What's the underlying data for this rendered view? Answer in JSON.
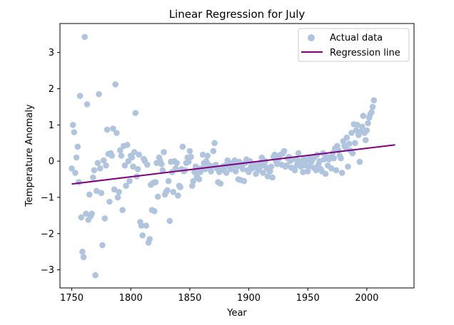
{
  "chart_data": {
    "type": "scatter",
    "title": "Linear Regression for July",
    "xlabel": "Year",
    "ylabel": "Temperature Anomaly",
    "xlim": [
      1740,
      2040
    ],
    "ylim": [
      -3.5,
      3.8
    ],
    "xticks": [
      1750,
      1800,
      1850,
      1900,
      1950,
      2000
    ],
    "yticks": [
      -3,
      -2,
      -1,
      0,
      1,
      2,
      3
    ],
    "grid": false,
    "legend_position": "top-right",
    "colors": {
      "scatter": "#b0c4de",
      "line": "#800080"
    },
    "series": [
      {
        "name": "Actual data",
        "type": "scatter",
        "points": [
          [
            1750,
            -0.2
          ],
          [
            1751,
            1.0
          ],
          [
            1752,
            0.8
          ],
          [
            1753,
            -0.32
          ],
          [
            1754,
            0.1
          ],
          [
            1755,
            0.4
          ],
          [
            1756,
            -0.58
          ],
          [
            1757,
            1.8
          ],
          [
            1758,
            -1.55
          ],
          [
            1759,
            -2.5
          ],
          [
            1760,
            -2.65
          ],
          [
            1761,
            3.43
          ],
          [
            1762,
            -1.45
          ],
          [
            1763,
            1.57
          ],
          [
            1764,
            -1.62
          ],
          [
            1765,
            -0.92
          ],
          [
            1766,
            -1.52
          ],
          [
            1767,
            -1.45
          ],
          [
            1768,
            -0.45
          ],
          [
            1769,
            -0.25
          ],
          [
            1770,
            -3.15
          ],
          [
            1771,
            -0.82
          ],
          [
            1772,
            -0.05
          ],
          [
            1773,
            1.85
          ],
          [
            1774,
            -0.2
          ],
          [
            1775,
            -0.88
          ],
          [
            1776,
            -2.32
          ],
          [
            1777,
            0.02
          ],
          [
            1778,
            -1.58
          ],
          [
            1779,
            -0.12
          ],
          [
            1780,
            0.87
          ],
          [
            1781,
            0.2
          ],
          [
            1782,
            -1.12
          ],
          [
            1783,
            0.22
          ],
          [
            1784,
            0.15
          ],
          [
            1785,
            0.9
          ],
          [
            1786,
            -0.78
          ],
          [
            1787,
            2.12
          ],
          [
            1788,
            0.78
          ],
          [
            1789,
            -1.0
          ],
          [
            1790,
            -0.85
          ],
          [
            1791,
            0.3
          ],
          [
            1792,
            0.15
          ],
          [
            1793,
            -1.35
          ],
          [
            1794,
            0.42
          ],
          [
            1795,
            -0.12
          ],
          [
            1796,
            -0.68
          ],
          [
            1797,
            0.45
          ],
          [
            1798,
            0.0
          ],
          [
            1799,
            -0.55
          ],
          [
            1800,
            0.15
          ],
          [
            1801,
            0.1
          ],
          [
            1802,
            -0.15
          ],
          [
            1803,
            0.25
          ],
          [
            1804,
            1.33
          ],
          [
            1805,
            -0.42
          ],
          [
            1806,
            -0.22
          ],
          [
            1807,
            0.18
          ],
          [
            1808,
            -1.68
          ],
          [
            1809,
            -1.78
          ],
          [
            1810,
            -2.05
          ],
          [
            1811,
            0.06
          ],
          [
            1812,
            0.0
          ],
          [
            1813,
            -1.78
          ],
          [
            1814,
            -0.1
          ],
          [
            1815,
            -2.25
          ],
          [
            1816,
            -2.15
          ],
          [
            1817,
            -0.65
          ],
          [
            1818,
            -1.35
          ],
          [
            1819,
            -0.6
          ],
          [
            1820,
            -1.38
          ],
          [
            1821,
            -0.58
          ],
          [
            1822,
            -0.05
          ],
          [
            1823,
            -0.98
          ],
          [
            1824,
            0.1
          ],
          [
            1825,
            0.0
          ],
          [
            1826,
            -0.08
          ],
          [
            1827,
            -0.25
          ],
          [
            1828,
            0.25
          ],
          [
            1829,
            -0.92
          ],
          [
            1830,
            -0.85
          ],
          [
            1831,
            -0.8
          ],
          [
            1832,
            -0.55
          ],
          [
            1833,
            -1.65
          ],
          [
            1834,
            -0.02
          ],
          [
            1835,
            -0.3
          ],
          [
            1836,
            -0.85
          ],
          [
            1837,
            0.0
          ],
          [
            1838,
            -0.2
          ],
          [
            1839,
            -0.05
          ],
          [
            1840,
            -0.95
          ],
          [
            1841,
            -0.68
          ],
          [
            1842,
            -0.72
          ],
          [
            1843,
            -0.22
          ],
          [
            1844,
            0.4
          ],
          [
            1845,
            -0.28
          ],
          [
            1846,
            -0.25
          ],
          [
            1847,
            -0.05
          ],
          [
            1848,
            0.1
          ],
          [
            1849,
            -0.02
          ],
          [
            1850,
            0.28
          ],
          [
            1851,
            0.12
          ],
          [
            1852,
            -0.68
          ],
          [
            1853,
            -0.55
          ],
          [
            1854,
            -0.3
          ],
          [
            1855,
            -0.15
          ],
          [
            1856,
            -0.42
          ],
          [
            1857,
            -0.2
          ],
          [
            1858,
            -0.5
          ],
          [
            1859,
            -0.3
          ],
          [
            1860,
            -0.2
          ],
          [
            1861,
            0.18
          ],
          [
            1862,
            -0.05
          ],
          [
            1863,
            -0.22
          ],
          [
            1864,
            0.0
          ],
          [
            1865,
            0.15
          ],
          [
            1866,
            -0.1
          ],
          [
            1867,
            -0.22
          ],
          [
            1868,
            -0.28
          ],
          [
            1869,
            -0.15
          ],
          [
            1870,
            0.28
          ],
          [
            1871,
            0.5
          ],
          [
            1872,
            -0.1
          ],
          [
            1873,
            -0.2
          ],
          [
            1874,
            -0.58
          ],
          [
            1875,
            -0.3
          ],
          [
            1876,
            -0.62
          ],
          [
            1877,
            -0.2
          ],
          [
            1878,
            -0.15
          ],
          [
            1879,
            -0.25
          ],
          [
            1880,
            -0.12
          ],
          [
            1881,
            -0.32
          ],
          [
            1882,
            0.02
          ],
          [
            1883,
            -0.08
          ],
          [
            1884,
            -0.18
          ],
          [
            1885,
            -0.22
          ],
          [
            1886,
            -0.05
          ],
          [
            1887,
            -0.1
          ],
          [
            1888,
            0.02
          ],
          [
            1889,
            -0.28
          ],
          [
            1890,
            -0.15
          ],
          [
            1891,
            -0.5
          ],
          [
            1892,
            -0.02
          ],
          [
            1893,
            -0.52
          ],
          [
            1894,
            -0.15
          ],
          [
            1895,
            -0.22
          ],
          [
            1896,
            -0.55
          ],
          [
            1897,
            -0.05
          ],
          [
            1898,
            0.05
          ],
          [
            1899,
            -0.25
          ],
          [
            1900,
            -0.3
          ],
          [
            1901,
            0.0
          ],
          [
            1902,
            -0.15
          ],
          [
            1903,
            -0.2
          ],
          [
            1904,
            -0.1
          ],
          [
            1905,
            -0.08
          ],
          [
            1906,
            -0.35
          ],
          [
            1907,
            -0.15
          ],
          [
            1908,
            -0.25
          ],
          [
            1909,
            -0.2
          ],
          [
            1910,
            -0.05
          ],
          [
            1911,
            0.1
          ],
          [
            1912,
            -0.32
          ],
          [
            1913,
            -0.12
          ],
          [
            1914,
            0.0
          ],
          [
            1915,
            -0.18
          ],
          [
            1916,
            -0.42
          ],
          [
            1917,
            -0.25
          ],
          [
            1918,
            -0.28
          ],
          [
            1919,
            -0.15
          ],
          [
            1920,
            -0.45
          ],
          [
            1921,
            0.12
          ],
          [
            1922,
            0.18
          ],
          [
            1923,
            0.0
          ],
          [
            1924,
            -0.08
          ],
          [
            1925,
            0.05
          ],
          [
            1926,
            0.15
          ],
          [
            1927,
            0.18
          ],
          [
            1928,
            -0.1
          ],
          [
            1929,
            0.22
          ],
          [
            1930,
            0.28
          ],
          [
            1931,
            -0.15
          ],
          [
            1932,
            -0.12
          ],
          [
            1933,
            0.08
          ],
          [
            1934,
            0.12
          ],
          [
            1935,
            0.0
          ],
          [
            1936,
            -0.18
          ],
          [
            1937,
            0.05
          ],
          [
            1938,
            -0.2
          ],
          [
            1939,
            -0.25
          ],
          [
            1940,
            0.05
          ],
          [
            1941,
            -0.1
          ],
          [
            1942,
            0.22
          ],
          [
            1943,
            0.0
          ],
          [
            1944,
            -0.15
          ],
          [
            1945,
            -0.05
          ],
          [
            1946,
            -0.3
          ],
          [
            1947,
            0.08
          ],
          [
            1948,
            -0.12
          ],
          [
            1949,
            0.02
          ],
          [
            1950,
            -0.28
          ],
          [
            1951,
            -0.15
          ],
          [
            1952,
            0.1
          ],
          [
            1953,
            -0.02
          ],
          [
            1954,
            0.05
          ],
          [
            1955,
            -0.18
          ],
          [
            1956,
            0.12
          ],
          [
            1957,
            -0.25
          ],
          [
            1958,
            0.18
          ],
          [
            1959,
            -0.1
          ],
          [
            1960,
            0.0
          ],
          [
            1961,
            -0.22
          ],
          [
            1962,
            -0.28
          ],
          [
            1963,
            0.22
          ],
          [
            1964,
            0.05
          ],
          [
            1965,
            -0.35
          ],
          [
            1966,
            0.12
          ],
          [
            1967,
            -0.12
          ],
          [
            1968,
            0.05
          ],
          [
            1969,
            0.1
          ],
          [
            1970,
            -0.2
          ],
          [
            1971,
            0.22
          ],
          [
            1972,
            0.08
          ],
          [
            1973,
            0.35
          ],
          [
            1974,
            -0.25
          ],
          [
            1975,
            0.42
          ],
          [
            1976,
            0.3
          ],
          [
            1977,
            0.15
          ],
          [
            1978,
            0.08
          ],
          [
            1979,
            -0.32
          ],
          [
            1980,
            0.55
          ],
          [
            1981,
            0.42
          ],
          [
            1982,
            0.38
          ],
          [
            1983,
            0.65
          ],
          [
            1984,
            -0.15
          ],
          [
            1985,
            0.48
          ],
          [
            1986,
            0.3
          ],
          [
            1987,
            0.78
          ],
          [
            1988,
            0.22
          ],
          [
            1989,
            1.02
          ],
          [
            1990,
            0.5
          ],
          [
            1991,
            0.85
          ],
          [
            1992,
            1.0
          ],
          [
            1993,
            0.72
          ],
          [
            1994,
            -0.02
          ],
          [
            1995,
            0.82
          ],
          [
            1996,
            0.95
          ],
          [
            1997,
            1.25
          ],
          [
            1998,
            0.78
          ],
          [
            1999,
            0.58
          ],
          [
            2000,
            0.85
          ],
          [
            2001,
            1.05
          ],
          [
            2002,
            1.2
          ],
          [
            2003,
            1.3
          ],
          [
            2004,
            1.35
          ],
          [
            2005,
            1.5
          ],
          [
            2006,
            1.68
          ]
        ]
      },
      {
        "name": "Regression line",
        "type": "line",
        "points": [
          [
            1750,
            -0.63
          ],
          [
            2024,
            0.45
          ]
        ]
      }
    ]
  }
}
